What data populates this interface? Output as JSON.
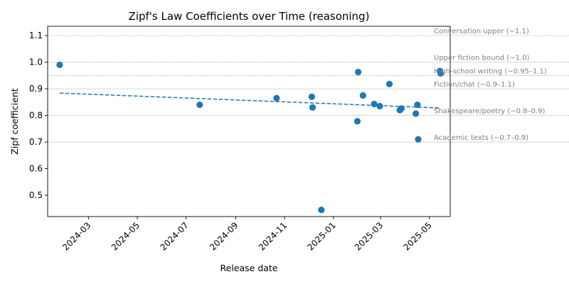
{
  "chart_data": {
    "type": "scatter",
    "title": "Zipf's Law Coefficients over Time (reasoning)",
    "xlabel": "Release date",
    "ylabel": "Zipf coefficient",
    "xlim": [
      "2024-01-10",
      "2025-05-27"
    ],
    "ylim": [
      0.42,
      1.135
    ],
    "x_ticks": [
      "2024-03",
      "2024-05",
      "2024-07",
      "2024-09",
      "2024-11",
      "2025-01",
      "2025-03",
      "2025-05"
    ],
    "y_ticks": [
      0.5,
      0.6,
      0.7,
      0.8,
      0.9,
      1.0,
      1.1
    ],
    "grid": false,
    "colors": {
      "points": "#1f77b4",
      "trend": "#1f77b4",
      "reference": "#808080"
    },
    "points": [
      {
        "x": "2024-01-25",
        "y": 0.99
      },
      {
        "x": "2024-07-18",
        "y": 0.84
      },
      {
        "x": "2024-10-22",
        "y": 0.865
      },
      {
        "x": "2024-12-05",
        "y": 0.87
      },
      {
        "x": "2024-12-06",
        "y": 0.83
      },
      {
        "x": "2024-12-17",
        "y": 0.445
      },
      {
        "x": "2025-01-31",
        "y": 0.778
      },
      {
        "x": "2025-02-01",
        "y": 0.963
      },
      {
        "x": "2025-02-07",
        "y": 0.875
      },
      {
        "x": "2025-02-21",
        "y": 0.843
      },
      {
        "x": "2025-02-28",
        "y": 0.835
      },
      {
        "x": "2025-03-12",
        "y": 0.918
      },
      {
        "x": "2025-03-25",
        "y": 0.82
      },
      {
        "x": "2025-03-27",
        "y": 0.826
      },
      {
        "x": "2025-04-14",
        "y": 0.807
      },
      {
        "x": "2025-04-16",
        "y": 0.84
      },
      {
        "x": "2025-04-17",
        "y": 0.71
      },
      {
        "x": "2025-05-14",
        "y": 0.967
      },
      {
        "x": "2025-05-15",
        "y": 0.958
      }
    ],
    "trend_line": {
      "style": "dashed",
      "start": {
        "x": "2024-01-25",
        "y": 0.884
      },
      "end": {
        "x": "2025-05-15",
        "y": 0.828
      }
    },
    "reference_lines": [
      {
        "y": 1.1,
        "label": "Conversation upper (~1.1)"
      },
      {
        "y": 1.0,
        "label": "Upper fiction bound (~1.0)"
      },
      {
        "y": 0.95,
        "label": "High-school writing (~0.95–1.1)"
      },
      {
        "y": 0.9,
        "label": "Fiction/chat (~0.9–1.1)"
      },
      {
        "y": 0.8,
        "label": "Shakespeare/poetry (~0.8–0.9)"
      },
      {
        "y": 0.7,
        "label": "Academic texts (~0.7–0.9)"
      }
    ]
  }
}
